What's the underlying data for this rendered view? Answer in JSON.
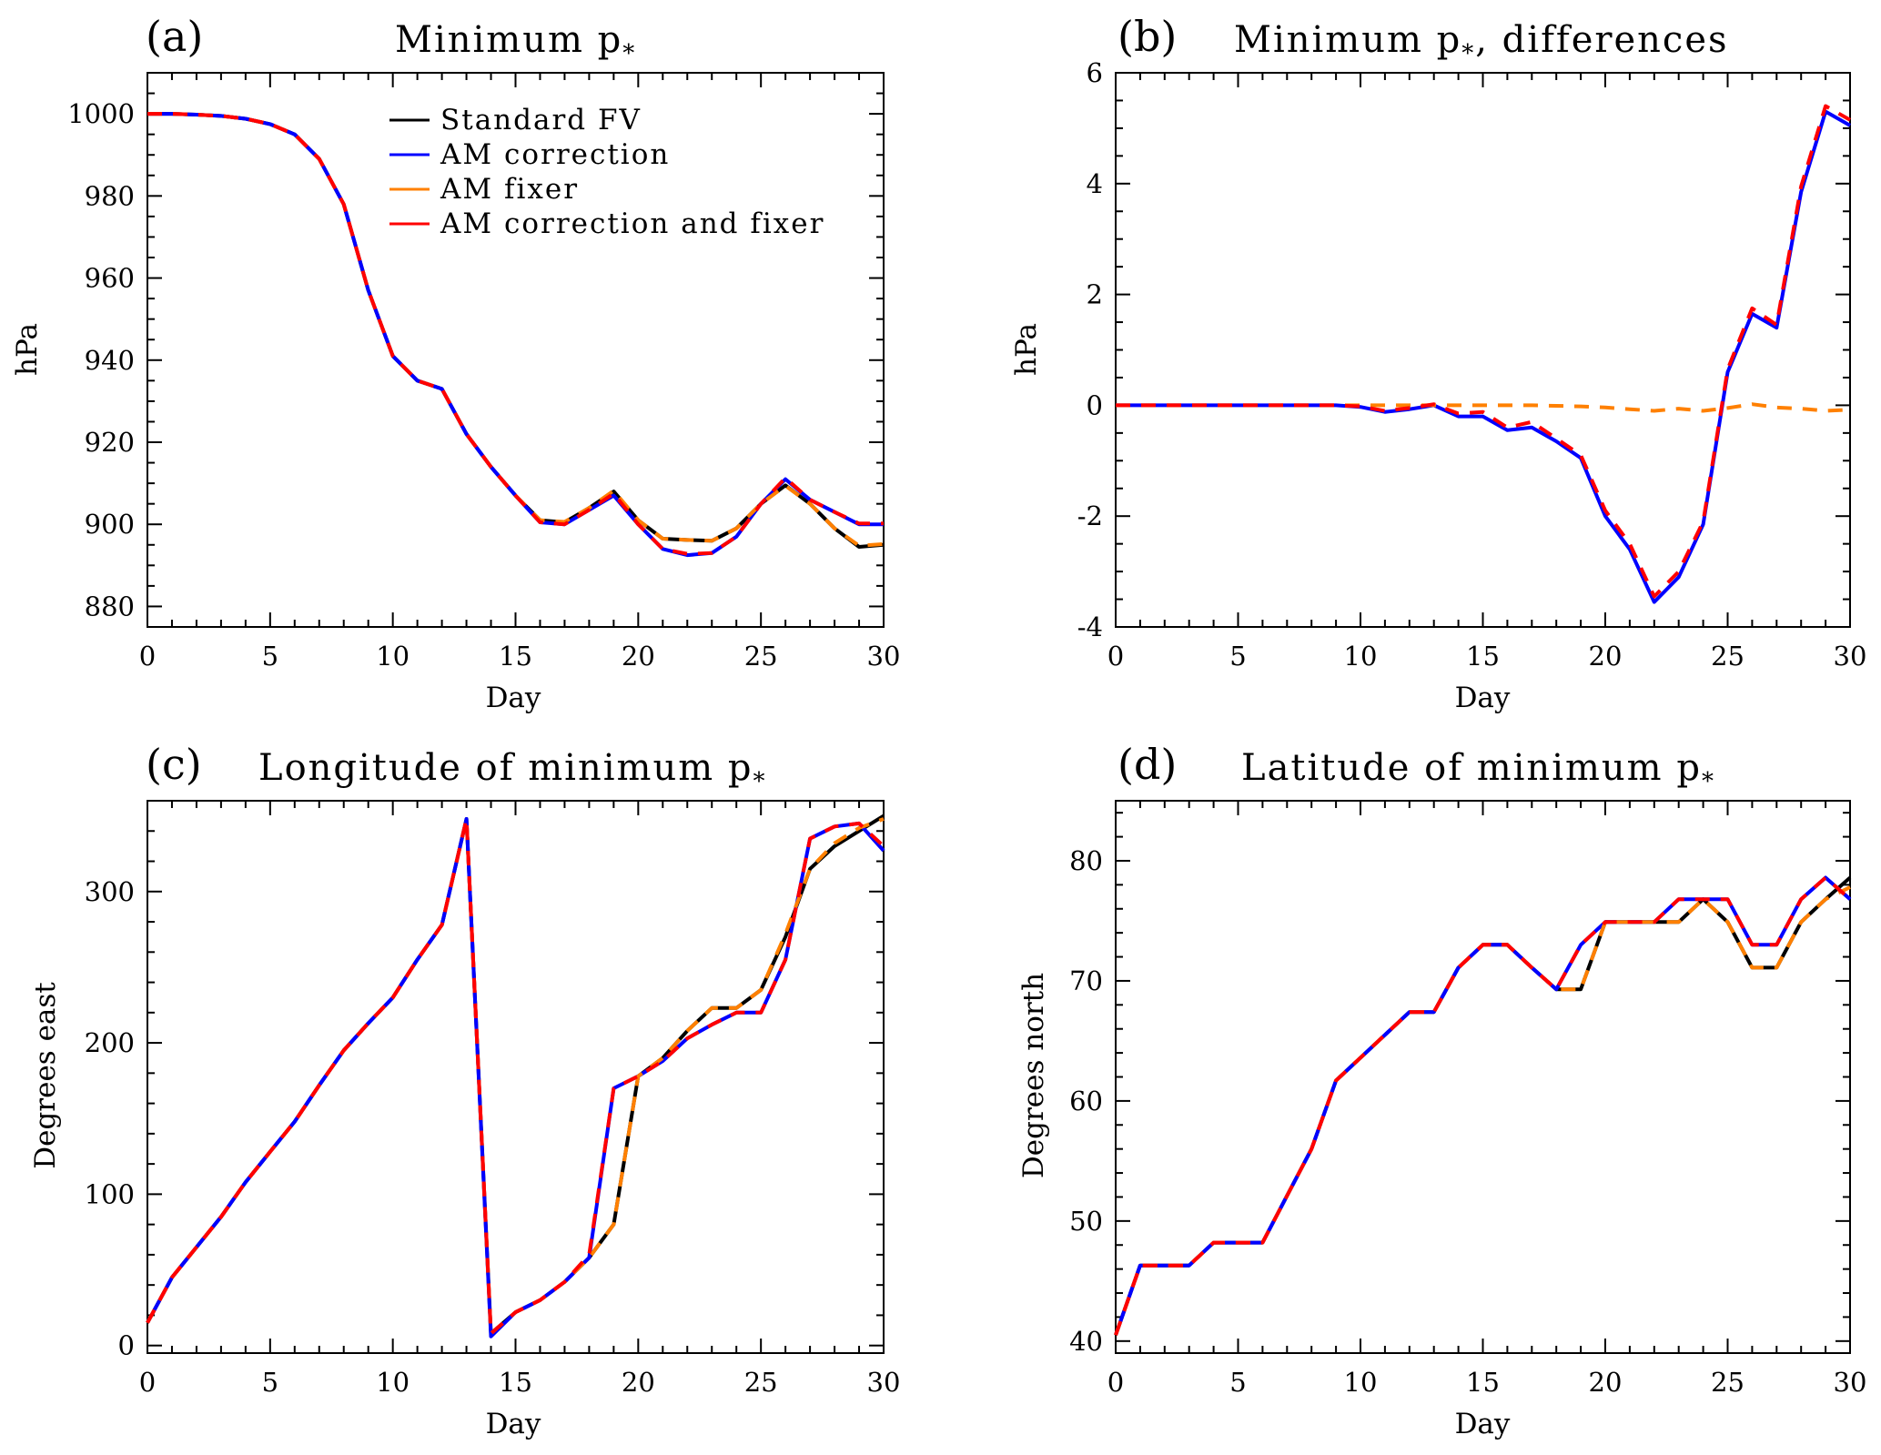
{
  "colors": {
    "standard_fv": "#000000",
    "am_correction": "#0000ff",
    "am_fixer": "#ff8000",
    "am_correction_and_fixer": "#ff0000"
  },
  "legend": [
    {
      "label": "Standard FV",
      "color": "#000000"
    },
    {
      "label": "AM correction",
      "color": "#0000ff"
    },
    {
      "label": "AM fixer",
      "color": "#ff8000"
    },
    {
      "label": "AM correction and fixer",
      "color": "#ff0000"
    }
  ],
  "chart_data": [
    {
      "id": "a",
      "panel_label": "(a)",
      "type": "line",
      "title": "Minimum p",
      "title_subscript": "*",
      "title_suffix": "",
      "xlabel": "Day",
      "ylabel": "hPa",
      "xlim": [
        0,
        30
      ],
      "ylim": [
        875,
        1010
      ],
      "xticks": [
        0,
        5,
        10,
        15,
        20,
        25,
        30
      ],
      "yticks": [
        880,
        900,
        920,
        940,
        960,
        980,
        1000
      ],
      "x": [
        0,
        1,
        2,
        3,
        4,
        5,
        6,
        7,
        8,
        9,
        10,
        11,
        12,
        13,
        14,
        15,
        16,
        17,
        18,
        19,
        20,
        21,
        22,
        23,
        24,
        25,
        26,
        27,
        28,
        29,
        30
      ],
      "series": [
        {
          "name": "Standard FV",
          "values": [
            1000,
            1000,
            999.8,
            999.5,
            998.8,
            997.5,
            995,
            989,
            978,
            957,
            941,
            935,
            933,
            922,
            914,
            907,
            901,
            900.5,
            904,
            908,
            901,
            896.5,
            896.2,
            896,
            899,
            905,
            909.5,
            905,
            899,
            894.5,
            895
          ]
        },
        {
          "name": "AM correction",
          "values": [
            1000,
            1000,
            999.8,
            999.5,
            998.8,
            997.5,
            995,
            989,
            978,
            957,
            941,
            935,
            933,
            922,
            914,
            907,
            900.5,
            900,
            903.5,
            907,
            900,
            894,
            892.5,
            893,
            897,
            905,
            911,
            906,
            903,
            900,
            900
          ]
        },
        {
          "name": "AM fixer",
          "values": [
            1000,
            1000,
            999.8,
            999.5,
            998.8,
            997.5,
            995,
            989,
            978,
            957,
            941,
            935,
            933,
            922,
            914,
            907,
            901,
            900.6,
            904,
            908.2,
            901,
            896.5,
            896.2,
            896,
            899,
            905,
            909.4,
            905,
            899,
            894.8,
            895.2
          ]
        },
        {
          "name": "AM correction and fixer",
          "values": [
            1000,
            1000,
            999.8,
            999.5,
            998.8,
            997.5,
            995,
            989,
            978,
            957,
            941,
            935,
            933,
            922,
            914,
            907,
            900.5,
            900,
            903.5,
            907.5,
            900,
            894,
            892.8,
            893,
            897,
            905,
            911.3,
            906,
            903,
            900.2,
            900.2
          ]
        }
      ],
      "legend_position": "top-right"
    },
    {
      "id": "b",
      "panel_label": "(b)",
      "type": "line",
      "title": "Minimum p",
      "title_subscript": "*",
      "title_suffix": ", differences",
      "xlabel": "Day",
      "ylabel": "hPa",
      "xlim": [
        0,
        30
      ],
      "ylim": [
        -4,
        6
      ],
      "xticks": [
        0,
        5,
        10,
        15,
        20,
        25,
        30
      ],
      "yticks": [
        -4,
        -2,
        0,
        2,
        4,
        6
      ],
      "x": [
        0,
        1,
        2,
        3,
        4,
        5,
        6,
        7,
        8,
        9,
        10,
        11,
        12,
        13,
        14,
        15,
        16,
        17,
        18,
        19,
        20,
        21,
        22,
        23,
        24,
        25,
        26,
        27,
        28,
        29,
        30
      ],
      "series": [
        {
          "name": "AM correction",
          "values": [
            0,
            0,
            0,
            0,
            0,
            0,
            0,
            0,
            0,
            0,
            -0.03,
            -0.12,
            -0.07,
            0,
            -0.2,
            -0.2,
            -0.45,
            -0.4,
            -0.65,
            -0.95,
            -2.0,
            -2.6,
            -3.55,
            -3.1,
            -2.15,
            0.6,
            1.65,
            1.4,
            3.85,
            5.3,
            5.05
          ]
        },
        {
          "name": "AM fixer",
          "values": [
            0,
            0,
            0,
            0,
            0,
            0,
            0,
            0,
            0,
            0,
            0,
            0,
            0,
            0,
            0,
            0,
            0,
            0,
            -0.01,
            -0.02,
            -0.04,
            -0.07,
            -0.1,
            -0.06,
            -0.1,
            -0.05,
            0.02,
            -0.04,
            -0.06,
            -0.1,
            -0.08
          ]
        },
        {
          "name": "AM correction and fixer",
          "values": [
            0,
            0,
            0,
            0,
            0,
            0,
            0,
            0,
            0,
            0,
            -0.02,
            -0.1,
            -0.05,
            0.02,
            -0.15,
            -0.12,
            -0.4,
            -0.3,
            -0.6,
            -0.9,
            -1.9,
            -2.5,
            -3.45,
            -3.0,
            -2.1,
            0.65,
            1.75,
            1.45,
            3.95,
            5.4,
            5.15
          ]
        }
      ],
      "legend_position": "none"
    },
    {
      "id": "c",
      "panel_label": "(c)",
      "type": "line",
      "title": "Longitude of minimum p",
      "title_subscript": "*",
      "title_suffix": "",
      "xlabel": "Day",
      "ylabel": "Degrees east",
      "xlim": [
        0,
        30
      ],
      "ylim": [
        -5,
        360
      ],
      "xticks": [
        0,
        5,
        10,
        15,
        20,
        25,
        30
      ],
      "yticks": [
        0,
        100,
        200,
        300
      ],
      "x": [
        0,
        1,
        2,
        3,
        4,
        5,
        6,
        7,
        8,
        9,
        10,
        11,
        12,
        13,
        14,
        15,
        16,
        17,
        18,
        19,
        20,
        21,
        22,
        23,
        24,
        25,
        26,
        27,
        28,
        29,
        30
      ],
      "series": [
        {
          "name": "Standard FV",
          "values": [
            15,
            45,
            65,
            85,
            108,
            128,
            148,
            172,
            195,
            213,
            230,
            255,
            278,
            348,
            8,
            22,
            30,
            42,
            58,
            80,
            178,
            190,
            208,
            223,
            223,
            235,
            270,
            315,
            330,
            340,
            350
          ]
        },
        {
          "name": "AM correction",
          "values": [
            15,
            45,
            65,
            85,
            108,
            128,
            148,
            172,
            195,
            213,
            230,
            255,
            278,
            348,
            6,
            22,
            30,
            42,
            58,
            170,
            178,
            188,
            203,
            212,
            220,
            220,
            255,
            335,
            343,
            345,
            327
          ]
        },
        {
          "name": "AM fixer",
          "values": [
            15,
            45,
            65,
            85,
            108,
            128,
            148,
            172,
            195,
            213,
            230,
            255,
            278,
            348,
            8,
            22,
            30,
            42,
            58,
            80,
            178,
            190,
            208,
            223,
            223,
            235,
            272,
            315,
            332,
            342,
            348
          ]
        },
        {
          "name": "AM correction and fixer",
          "values": [
            15,
            45,
            65,
            85,
            108,
            128,
            148,
            172,
            195,
            213,
            230,
            255,
            278,
            348,
            8,
            22,
            30,
            42,
            60,
            170,
            178,
            188,
            203,
            212,
            220,
            220,
            255,
            335,
            343,
            345,
            330
          ]
        }
      ],
      "legend_position": "none"
    },
    {
      "id": "d",
      "panel_label": "(d)",
      "type": "line",
      "title": "Latitude of minimum p",
      "title_subscript": "*",
      "title_suffix": "",
      "xlabel": "Day",
      "ylabel": "Degrees north",
      "xlim": [
        0,
        30
      ],
      "ylim": [
        39,
        85
      ],
      "xticks": [
        0,
        5,
        10,
        15,
        20,
        25,
        30
      ],
      "yticks": [
        40,
        50,
        60,
        70,
        80
      ],
      "x": [
        0,
        1,
        2,
        3,
        4,
        5,
        6,
        7,
        8,
        9,
        10,
        11,
        12,
        13,
        14,
        15,
        16,
        17,
        18,
        19,
        20,
        21,
        22,
        23,
        24,
        25,
        26,
        27,
        28,
        29,
        30
      ],
      "series": [
        {
          "name": "Standard FV",
          "values": [
            40.5,
            46.3,
            46.3,
            46.3,
            48.2,
            48.2,
            48.2,
            52.1,
            56.0,
            61.7,
            63.6,
            65.5,
            67.4,
            67.4,
            71.1,
            73.0,
            73.0,
            71.1,
            69.3,
            69.3,
            74.9,
            74.9,
            74.9,
            74.9,
            76.8,
            74.9,
            71.1,
            71.1,
            74.9,
            76.8,
            78.6
          ]
        },
        {
          "name": "AM correction",
          "values": [
            40.5,
            46.3,
            46.3,
            46.3,
            48.2,
            48.2,
            48.2,
            52.1,
            56.0,
            61.7,
            63.6,
            65.5,
            67.4,
            67.4,
            71.1,
            73.0,
            73.0,
            71.1,
            69.3,
            73.0,
            74.9,
            74.9,
            74.9,
            76.8,
            76.8,
            76.8,
            73.0,
            73.0,
            76.8,
            78.6,
            76.8
          ]
        },
        {
          "name": "AM fixer",
          "values": [
            40.5,
            46.3,
            46.3,
            46.3,
            48.2,
            48.2,
            48.2,
            52.1,
            56.0,
            61.7,
            63.6,
            65.5,
            67.4,
            67.4,
            71.1,
            73.0,
            73.0,
            71.1,
            69.3,
            69.3,
            74.9,
            74.9,
            74.9,
            74.9,
            76.8,
            74.9,
            71.1,
            71.1,
            74.9,
            76.8,
            77.8
          ]
        },
        {
          "name": "AM correction and fixer",
          "values": [
            40.5,
            46.3,
            46.3,
            46.3,
            48.2,
            48.2,
            48.2,
            52.1,
            56.0,
            61.7,
            63.6,
            65.5,
            67.4,
            67.4,
            71.1,
            73.0,
            73.0,
            71.1,
            69.3,
            73.0,
            74.9,
            74.9,
            74.9,
            76.8,
            76.8,
            76.8,
            73.0,
            73.0,
            76.8,
            78.6,
            76.8
          ]
        }
      ],
      "legend_position": "none"
    }
  ]
}
